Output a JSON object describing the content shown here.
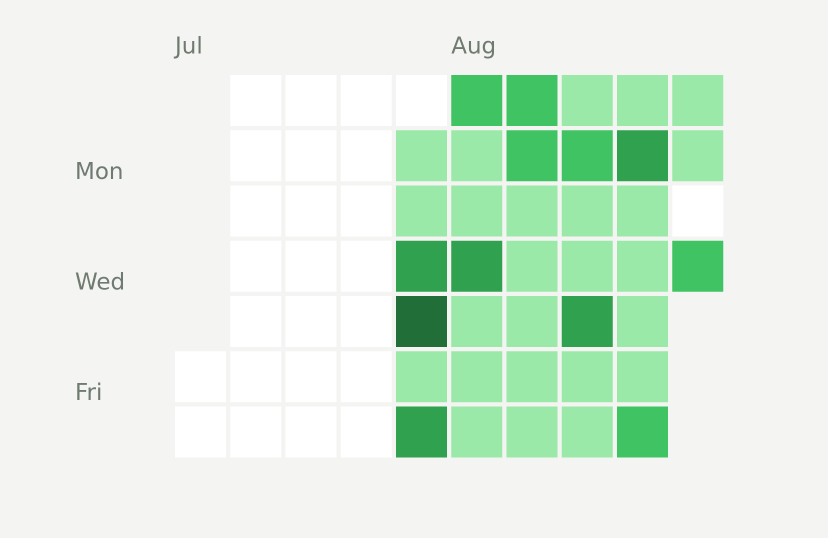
{
  "chart_data": {
    "type": "heatmap",
    "categories": [
      "Jul",
      null,
      null,
      null,
      null,
      "Aug",
      null,
      null,
      null,
      null
    ],
    "rows": [
      null,
      "Mon",
      null,
      "Wed",
      null,
      "Fri",
      null
    ],
    "values": [
      [
        null,
        0,
        0,
        0,
        0,
        2,
        2,
        1,
        1,
        1
      ],
      [
        null,
        0,
        0,
        0,
        1,
        1,
        2,
        2,
        3,
        1
      ],
      [
        null,
        0,
        0,
        0,
        1,
        1,
        1,
        1,
        1,
        0
      ],
      [
        null,
        0,
        0,
        0,
        3,
        3,
        1,
        1,
        1,
        2
      ],
      [
        null,
        0,
        0,
        0,
        4,
        1,
        1,
        3,
        1,
        null
      ],
      [
        0,
        0,
        0,
        0,
        1,
        1,
        1,
        1,
        1,
        null
      ],
      [
        0,
        0,
        0,
        0,
        3,
        1,
        1,
        1,
        2,
        null
      ]
    ],
    "colors": [
      "#ffffff",
      "#9be9a8",
      "#40c463",
      "#30a14e",
      "#216e39"
    ]
  }
}
